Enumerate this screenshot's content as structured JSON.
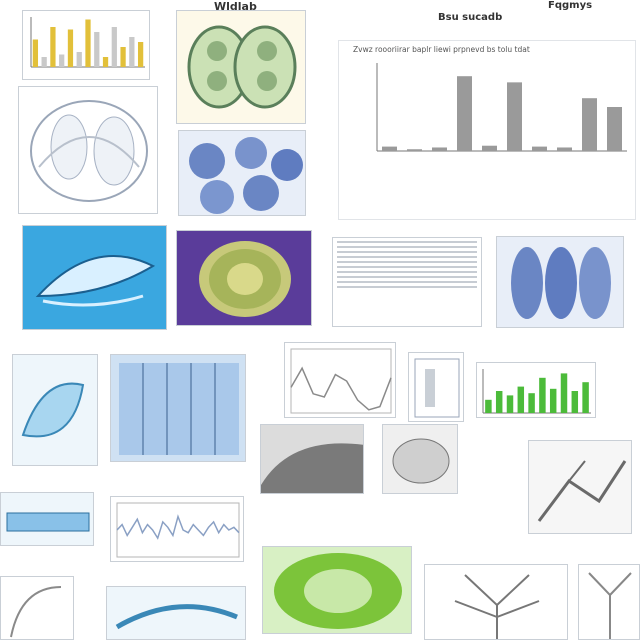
{
  "header": {
    "title_left": "Wldlab",
    "title_right_a": "Bsu sucadb",
    "title_right_b": "Fqgmys"
  },
  "chart_data": [
    {
      "type": "bar",
      "title": "",
      "categories": [
        "",
        "",
        "",
        "",
        "",
        "",
        "",
        "",
        "",
        "",
        "",
        "",
        ""
      ],
      "values": [
        0.55,
        0.2,
        0.8,
        0.25,
        0.75,
        0.3,
        0.95,
        0.7,
        0.2,
        0.8,
        0.4,
        0.6,
        0.5
      ],
      "ylim": [
        0,
        1
      ],
      "colors": [
        "#e2c03a",
        "#c9c9c9"
      ]
    },
    {
      "type": "bar",
      "title": "Zvwz roooriirar baplr liewi prpnevd bs tolu tdat",
      "categories": [
        "",
        "",
        "",
        "",
        "",
        "",
        "",
        "",
        "",
        ""
      ],
      "values": [
        0.05,
        0.02,
        0.04,
        0.85,
        0.06,
        0.78,
        0.05,
        0.04,
        0.6,
        0.5
      ],
      "ylim": [
        0,
        1
      ],
      "colors": [
        "#9a9a9a"
      ]
    },
    {
      "type": "bar",
      "title": "",
      "categories": [
        "",
        "",
        "",
        "",
        "",
        "",
        "",
        "",
        "",
        ""
      ],
      "values": [
        0.3,
        0.5,
        0.4,
        0.6,
        0.45,
        0.8,
        0.55,
        0.9,
        0.5,
        0.7
      ],
      "ylim": [
        0,
        1
      ],
      "colors": [
        "#4cbb3a"
      ]
    },
    {
      "type": "line",
      "title": "",
      "x": [
        0,
        1,
        2,
        3,
        4,
        5,
        6,
        7,
        8,
        9
      ],
      "values": [
        0.4,
        0.7,
        0.3,
        0.25,
        0.6,
        0.5,
        0.2,
        0.05,
        0.1,
        0.55
      ],
      "ylim": [
        0,
        1
      ],
      "colors": [
        "#8a8a8a"
      ]
    },
    {
      "type": "line",
      "title": "",
      "x": [
        0,
        1,
        2,
        3,
        4,
        5,
        6,
        7,
        8,
        9,
        10,
        11,
        12,
        13,
        14,
        15,
        16,
        17,
        18,
        19,
        20,
        21,
        22,
        23,
        24
      ],
      "values": [
        0.5,
        0.6,
        0.4,
        0.55,
        0.7,
        0.45,
        0.6,
        0.5,
        0.35,
        0.65,
        0.55,
        0.4,
        0.75,
        0.5,
        0.45,
        0.6,
        0.5,
        0.4,
        0.55,
        0.65,
        0.45,
        0.6,
        0.5,
        0.55,
        0.45
      ],
      "ylim": [
        0,
        1
      ],
      "colors": [
        "#8aa0c4"
      ]
    }
  ],
  "colors": {
    "border": "#c9cfd6",
    "blue": "#3aa7e0",
    "purple": "#5a3c9a",
    "green": "#7cc43a",
    "gray": "#9a9a9a"
  },
  "icons": [
    "anatomy-sketch",
    "lung-cells",
    "leaf-vessel",
    "cell-grid",
    "vein-tree"
  ]
}
